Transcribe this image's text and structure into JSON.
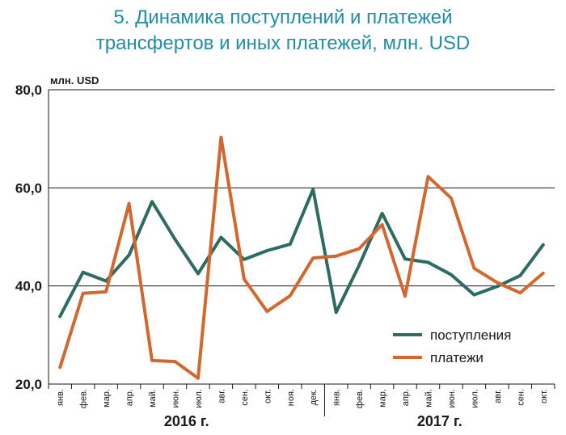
{
  "title": {
    "line1": "5. Динамика поступлений и платежей",
    "line2": "трансфертов и иных платежей, млн. USD"
  },
  "colors": {
    "title": "#1f8fa8",
    "series1": "#2e6b62",
    "series2": "#d2682f"
  },
  "chart_data": {
    "type": "line",
    "title": "5. Динамика поступлений и платежей трансфертов и иных платежей, млн. USD",
    "ylabel": "млн. USD",
    "ylim": [
      20,
      80
    ],
    "yticks": [
      "20,0",
      "40,0",
      "60,0",
      "80,0"
    ],
    "grid": true,
    "legend_position": "bottom-right",
    "categories": [
      "янв.",
      "фев.",
      "мар.",
      "апр.",
      "май.",
      "июн.",
      "июл.",
      "авг.",
      "сен.",
      "окт.",
      "ноя.",
      "дек.",
      "янв.",
      "фев.",
      "мар.",
      "апр.",
      "май.",
      "июн.",
      "июл.",
      "авг.",
      "сен.",
      "окт."
    ],
    "groups": [
      {
        "label": "2016 г.",
        "count": 12
      },
      {
        "label": "2017 г.",
        "count": 10
      }
    ],
    "series": [
      {
        "name": "поступления",
        "color": "#2e6b62",
        "values": [
          33.8,
          42.8,
          41.0,
          46.3,
          57.2,
          49.5,
          42.5,
          49.9,
          45.4,
          47.2,
          48.5,
          59.7,
          34.6,
          44.2,
          54.8,
          45.5,
          44.8,
          42.3,
          38.2,
          39.9,
          42.1,
          48.4
        ]
      },
      {
        "name": "платежи",
        "color": "#d2682f",
        "values": [
          23.4,
          38.5,
          38.8,
          56.8,
          24.8,
          24.6,
          21.2,
          70.3,
          41.4,
          34.8,
          38.0,
          45.7,
          46.1,
          47.6,
          52.5,
          37.9,
          62.3,
          57.9,
          43.6,
          40.7,
          38.6,
          42.6
        ]
      }
    ]
  }
}
